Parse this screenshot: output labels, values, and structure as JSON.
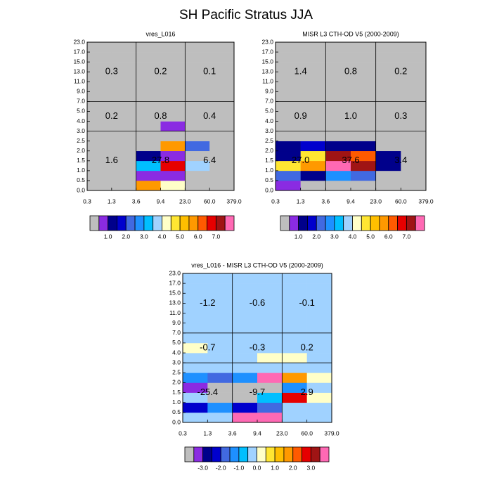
{
  "title": "SH Pacific Stratus JJA",
  "chart_data": [
    {
      "type": "heatmap",
      "title": "vres_L016",
      "xticks": [
        0.3,
        1.3,
        3.6,
        9.4,
        {
          "value": 23,
          "label": "23.0"
        },
        {
          "value": 60,
          "label": "60.0"
        },
        {
          "value": 379,
          "label": "379.0"
        }
      ],
      "yticks": [
        {
          "value": 0,
          "label": "0.0"
        },
        0.5,
        {
          "value": 1,
          "label": "1.0"
        },
        1.5,
        {
          "value": 2,
          "label": "2.0"
        },
        2.5,
        {
          "value": 3,
          "label": "3.0"
        },
        {
          "value": 4,
          "label": "4.0"
        },
        {
          "value": 5,
          "label": "5.0"
        },
        {
          "value": 7,
          "label": "7.0"
        },
        {
          "value": 9,
          "label": "9.0"
        },
        {
          "value": 11,
          "label": "11.0"
        },
        {
          "value": 13,
          "label": "13.0"
        },
        {
          "value": 15,
          "label": "15.0"
        },
        {
          "value": 17,
          "label": "17.0"
        },
        {
          "value": 23,
          "label": "23.0"
        }
      ],
      "values": [
        [
          0,
          0,
          5.7,
          4.2,
          0,
          0
        ],
        [
          0,
          0,
          0.7,
          0.7,
          0,
          0
        ],
        [
          0,
          0,
          3.2,
          6.7,
          3.7,
          0
        ],
        [
          0,
          0,
          1.2,
          0.7,
          0,
          0
        ],
        [
          0,
          0,
          0,
          5.7,
          2.2,
          0
        ],
        [
          0,
          0,
          0,
          0,
          0,
          0
        ],
        [
          0,
          0,
          0,
          0.7,
          0,
          0
        ],
        [
          0,
          0,
          0,
          0,
          0,
          0
        ],
        [
          0,
          0,
          0,
          0,
          0,
          0
        ],
        [
          0,
          0,
          0,
          0,
          0,
          0
        ],
        [
          0,
          0,
          0,
          0,
          0,
          0
        ],
        [
          0,
          0,
          0,
          0,
          0,
          0
        ],
        [
          0,
          0,
          0,
          0,
          0,
          0
        ],
        [
          0,
          0,
          0,
          0,
          0,
          0
        ],
        [
          0,
          0,
          0,
          0,
          0,
          0
        ]
      ],
      "region_values": [
        [
          1.6,
          27.8,
          6.4
        ],
        [
          0.2,
          0.8,
          0.4
        ],
        [
          0.3,
          0.2,
          0.1
        ]
      ],
      "region_value_labels": [
        [
          "1.6",
          "27.8",
          "6.4"
        ],
        [
          "0.2",
          "0.8",
          "0.4"
        ],
        [
          "0.3",
          "0.2",
          "0.1"
        ]
      ],
      "colorbar": {
        "lim": [
          0,
          8
        ],
        "colors": [
          "#bebebe",
          "#8a2be2",
          "#00008b",
          "#0000cd",
          "#4169e1",
          "#1e90ff",
          "#00bfff",
          "#a0d2ff",
          "#ffffc8",
          "#ffe632",
          "#ffbf00",
          "#ff9900",
          "#ff5a00",
          "#e60000",
          "#a01414",
          "#ff69b4"
        ],
        "ticks": [
          {
            "value": 1,
            "label": "1.0"
          },
          {
            "value": 2,
            "label": "2.0"
          },
          {
            "value": 3,
            "label": "3.0"
          },
          {
            "value": 4,
            "label": "4.0"
          },
          {
            "value": 5,
            "label": "5.0"
          },
          {
            "value": 6,
            "label": "6.0"
          },
          {
            "value": 7,
            "label": "7.0"
          }
        ]
      }
    },
    {
      "type": "heatmap",
      "title": "MISR L3 CTH-OD V5 (2000-2009)",
      "xticks": [
        0.3,
        1.3,
        3.6,
        9.4,
        {
          "value": 23,
          "label": "23.0"
        },
        {
          "value": 60,
          "label": "60.0"
        },
        {
          "value": 379,
          "label": "379.0"
        }
      ],
      "yticks": [
        {
          "value": 0,
          "label": "0.0"
        },
        0.5,
        {
          "value": 1,
          "label": "1.0"
        },
        1.5,
        {
          "value": 2,
          "label": "2.0"
        },
        2.5,
        {
          "value": 3,
          "label": "3.0"
        },
        {
          "value": 4,
          "label": "4.0"
        },
        {
          "value": 5,
          "label": "5.0"
        },
        {
          "value": 7,
          "label": "7.0"
        },
        {
          "value": 9,
          "label": "9.0"
        },
        {
          "value": 11,
          "label": "11.0"
        },
        {
          "value": 13,
          "label": "13.0"
        },
        {
          "value": 15,
          "label": "15.0"
        },
        {
          "value": 17,
          "label": "17.0"
        },
        {
          "value": 23,
          "label": "23.0"
        }
      ],
      "values": [
        [
          0.7,
          0,
          0,
          0,
          0,
          0
        ],
        [
          2.2,
          1.2,
          2.7,
          2.2,
          0,
          0
        ],
        [
          4.7,
          5.7,
          7.8,
          7.2,
          1.2,
          0
        ],
        [
          1.2,
          4.7,
          7.2,
          6.2,
          1.2,
          0
        ],
        [
          1.2,
          1.7,
          1.2,
          1.2,
          0,
          0
        ],
        [
          0,
          0,
          0,
          0,
          0,
          0
        ],
        [
          0,
          0,
          0,
          0,
          0,
          0
        ],
        [
          0,
          0,
          0,
          0,
          0,
          0
        ],
        [
          0,
          0,
          0,
          0,
          0,
          0
        ],
        [
          0,
          0,
          0,
          0,
          0,
          0
        ],
        [
          0,
          0,
          0,
          0,
          0,
          0
        ],
        [
          0,
          0,
          0,
          0,
          0,
          0
        ],
        [
          0,
          0,
          0,
          0,
          0,
          0
        ],
        [
          0,
          0,
          0,
          0,
          0,
          0
        ],
        [
          0,
          0,
          0,
          0,
          0,
          0
        ]
      ],
      "region_values": [
        [
          27.0,
          37.6,
          3.4
        ],
        [
          0.9,
          1.0,
          0.3
        ],
        [
          1.4,
          0.8,
          0.2
        ]
      ],
      "region_value_labels": [
        [
          "27.0",
          "37.6",
          "3.4"
        ],
        [
          "0.9",
          "1.0",
          "0.3"
        ],
        [
          "1.4",
          "0.8",
          "0.2"
        ]
      ],
      "colorbar": {
        "lim": [
          0,
          8
        ],
        "colors": [
          "#bebebe",
          "#8a2be2",
          "#00008b",
          "#0000cd",
          "#4169e1",
          "#1e90ff",
          "#00bfff",
          "#a0d2ff",
          "#ffffc8",
          "#ffe632",
          "#ffbf00",
          "#ff9900",
          "#ff5a00",
          "#e60000",
          "#a01414",
          "#ff69b4"
        ],
        "ticks": [
          {
            "value": 1,
            "label": "1.0"
          },
          {
            "value": 2,
            "label": "2.0"
          },
          {
            "value": 3,
            "label": "3.0"
          },
          {
            "value": 4,
            "label": "4.0"
          },
          {
            "value": 5,
            "label": "5.0"
          },
          {
            "value": 6,
            "label": "6.0"
          },
          {
            "value": 7,
            "label": "7.0"
          }
        ]
      }
    },
    {
      "type": "heatmap",
      "title": "vres_L016 - MISR L3 CTH-OD V5 (2000-2009)",
      "xticks": [
        0.3,
        1.3,
        3.6,
        9.4,
        {
          "value": 23,
          "label": "23.0"
        },
        {
          "value": 60,
          "label": "60.0"
        },
        {
          "value": 379,
          "label": "379.0"
        }
      ],
      "yticks": [
        {
          "value": 0,
          "label": "0.0"
        },
        0.5,
        {
          "value": 1,
          "label": "1.0"
        },
        1.5,
        {
          "value": 2,
          "label": "2.0"
        },
        2.5,
        {
          "value": 3,
          "label": "3.0"
        },
        {
          "value": 4,
          "label": "4.0"
        },
        {
          "value": 5,
          "label": "5.0"
        },
        {
          "value": 7,
          "label": "7.0"
        },
        {
          "value": 9,
          "label": "9.0"
        },
        {
          "value": 11,
          "label": "11.0"
        },
        {
          "value": 13,
          "label": "13.0"
        },
        {
          "value": 15,
          "label": "15.0"
        },
        {
          "value": 17,
          "label": "17.0"
        },
        {
          "value": 23,
          "label": "23.0"
        }
      ],
      "values": [
        [
          -0.2,
          -0.2,
          3.7,
          3.7,
          -0.2,
          -0.2
        ],
        [
          -2.2,
          -1.2,
          -2.2,
          -1.7,
          -0.2,
          -0.2
        ],
        [
          -0.2,
          -3.7,
          -3.7,
          -0.7,
          2.7,
          0.2
        ],
        [
          -3.2,
          -3.7,
          -3.7,
          -3.7,
          -1.2,
          -0.2
        ],
        [
          -1.2,
          -1.7,
          -1.2,
          3.7,
          1.7,
          0.2
        ],
        [
          -0.2,
          -0.2,
          -0.2,
          -0.2,
          -0.2,
          -0.2
        ],
        [
          -0.2,
          -0.2,
          -0.2,
          0.2,
          0.2,
          -0.2
        ],
        [
          0.2,
          -0.2,
          -0.2,
          -0.2,
          -0.2,
          -0.2
        ],
        [
          -0.2,
          -0.2,
          -0.2,
          -0.2,
          -0.2,
          -0.2
        ],
        [
          -0.2,
          -0.2,
          -0.2,
          -0.2,
          -0.2,
          -0.2
        ],
        [
          -0.2,
          -0.2,
          -0.2,
          -0.2,
          -0.2,
          -0.2
        ],
        [
          -0.2,
          -0.2,
          -0.2,
          -0.2,
          -0.2,
          -0.2
        ],
        [
          -0.2,
          -0.2,
          -0.2,
          -0.2,
          -0.2,
          -0.2
        ],
        [
          -0.2,
          -0.2,
          -0.2,
          -0.2,
          -0.2,
          -0.2
        ],
        [
          -0.2,
          -0.2,
          -0.2,
          -0.2,
          -0.2,
          -0.2
        ]
      ],
      "region_values": [
        [
          -25.4,
          -9.7,
          2.9
        ],
        [
          -0.7,
          -0.3,
          0.2
        ],
        [
          -1.2,
          -0.6,
          -0.1
        ]
      ],
      "region_value_labels": [
        [
          "-25.4",
          "-9.7",
          "2.9"
        ],
        [
          "-0.7",
          "-0.3",
          "0.2"
        ],
        [
          "-1.2",
          "-0.6",
          "-0.1"
        ]
      ],
      "colorbar": {
        "lim": [
          -4,
          4
        ],
        "colors": [
          "#bebebe",
          "#8a2be2",
          "#00008b",
          "#0000cd",
          "#4169e1",
          "#1e90ff",
          "#00bfff",
          "#a0d2ff",
          "#ffffc8",
          "#ffe632",
          "#ffbf00",
          "#ff9900",
          "#ff5a00",
          "#e60000",
          "#a01414",
          "#ff69b4"
        ],
        "ticks": [
          {
            "value": -3,
            "label": "-3.0"
          },
          {
            "value": -2,
            "label": "-2.0"
          },
          {
            "value": -1,
            "label": "-1.0"
          },
          {
            "value": 0,
            "label": "0.0"
          },
          {
            "value": 1,
            "label": "1.0"
          },
          {
            "value": 2,
            "label": "2.0"
          },
          {
            "value": 3,
            "label": "3.0"
          }
        ]
      }
    }
  ]
}
